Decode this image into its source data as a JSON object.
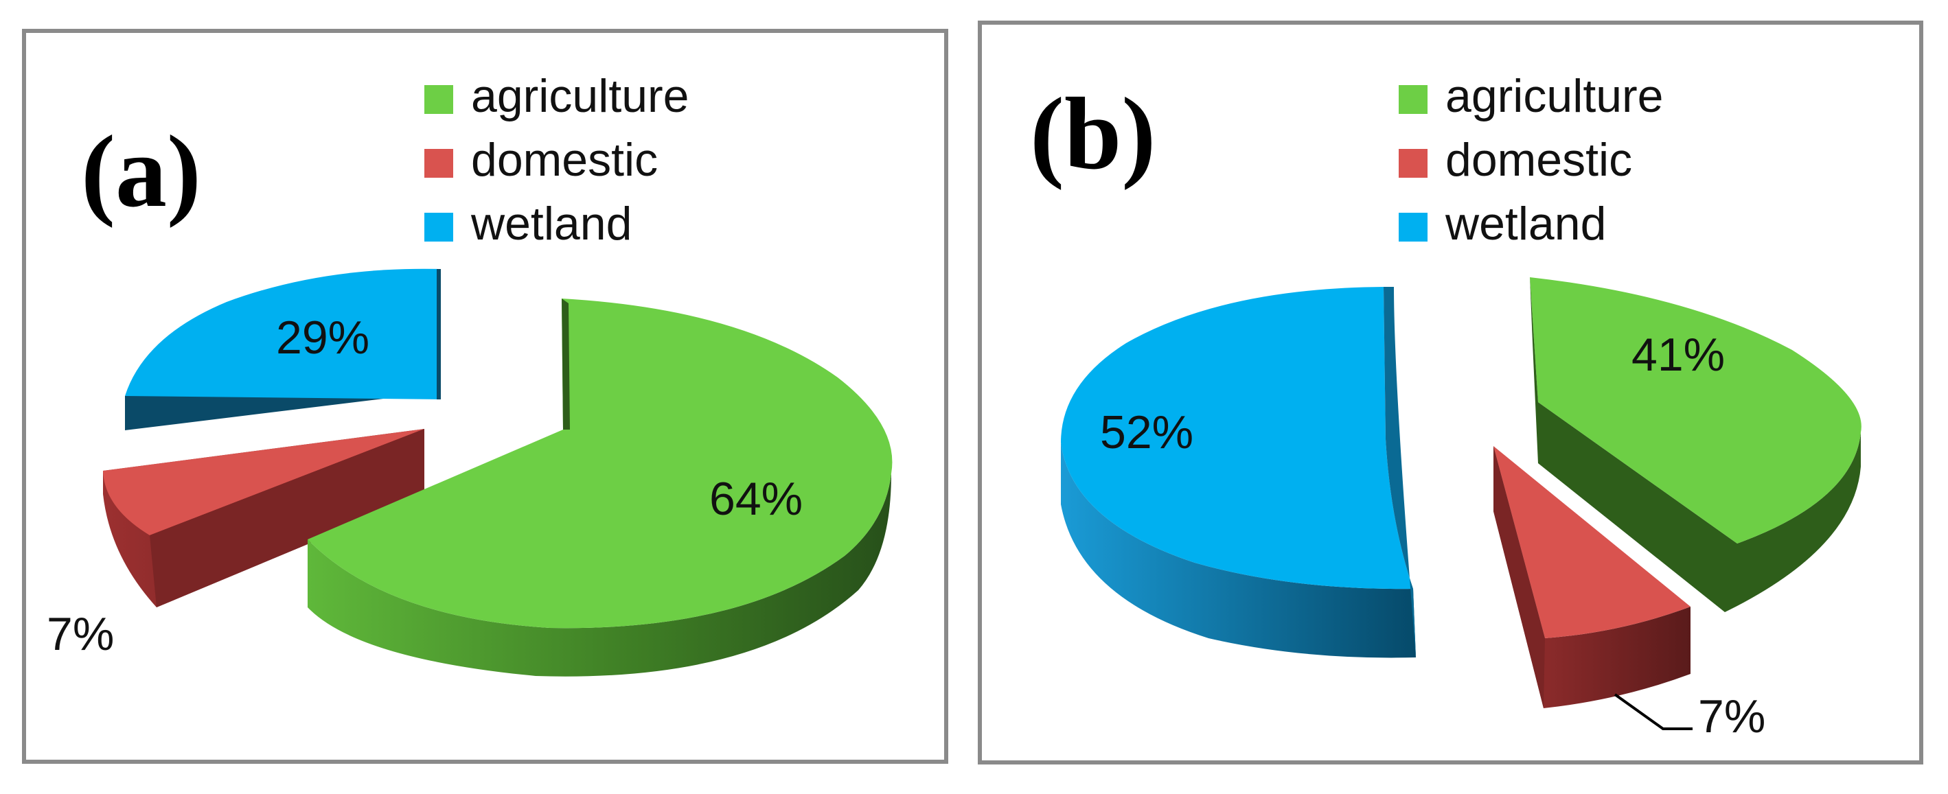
{
  "colors": {
    "agriculture": "#6dcf45",
    "agriculture_side": "#2e5e1a",
    "domestic": "#d9534f",
    "domestic_side": "#6e2222",
    "wetland": "#00b0f0",
    "wetland_side": "#0a4a68",
    "frame": "#8a8a8a"
  },
  "chart_data": [
    {
      "type": "pie",
      "panel_label": "(a)",
      "legend": [
        "agriculture",
        "domestic",
        "wetland"
      ],
      "legend_position": "top-right",
      "slices": [
        {
          "name": "agriculture",
          "value": 64,
          "label": "64%"
        },
        {
          "name": "domestic",
          "value": 7,
          "label": "7%"
        },
        {
          "name": "wetland",
          "value": 29,
          "label": "29%"
        }
      ]
    },
    {
      "type": "pie",
      "panel_label": "(b)",
      "legend": [
        "agriculture",
        "domestic",
        "wetland"
      ],
      "legend_position": "top-right",
      "slices": [
        {
          "name": "agriculture",
          "value": 41,
          "label": "41%"
        },
        {
          "name": "domestic",
          "value": 7,
          "label": "7%"
        },
        {
          "name": "wetland",
          "value": 52,
          "label": "52%"
        }
      ]
    }
  ]
}
